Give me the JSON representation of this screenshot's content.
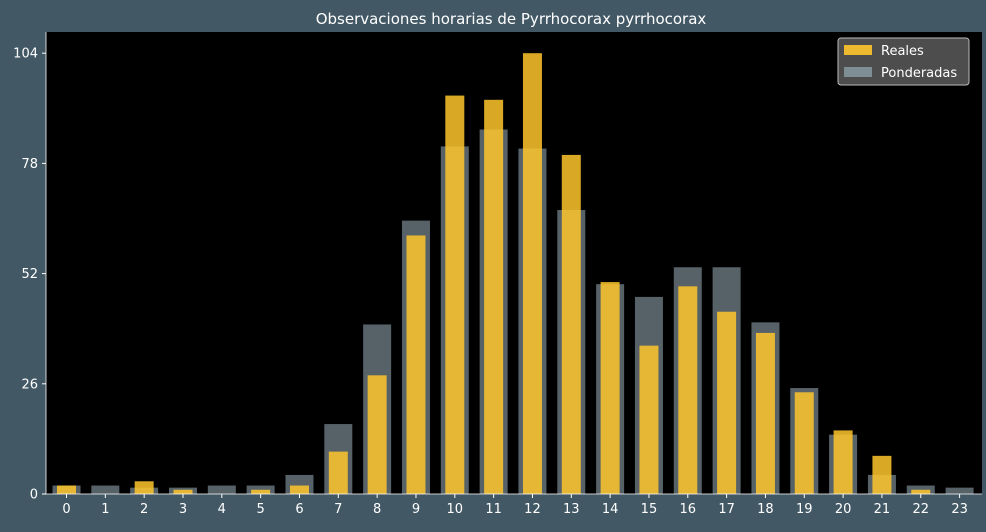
{
  "chart_data": {
    "type": "bar",
    "title": "Observaciones horarias de Pyrrhocorax pyrrhocorax",
    "xlabel": "",
    "ylabel": "",
    "categories": [
      "0",
      "1",
      "2",
      "3",
      "4",
      "5",
      "6",
      "7",
      "8",
      "9",
      "10",
      "11",
      "12",
      "13",
      "14",
      "15",
      "16",
      "17",
      "18",
      "19",
      "20",
      "21",
      "22",
      "23"
    ],
    "yticks": [
      0,
      26,
      52,
      78,
      104
    ],
    "ylim": [
      0,
      109
    ],
    "grid": false,
    "legend_position": "top-right",
    "series": [
      {
        "name": "Reales",
        "color": "#ffc72c",
        "values": [
          2,
          0,
          3,
          1,
          0,
          1,
          2,
          10,
          28,
          61,
          94,
          93,
          104,
          80,
          50,
          35,
          49,
          43,
          38,
          24,
          15,
          9,
          1,
          0
        ]
      },
      {
        "name": "Ponderadas",
        "color": "#90a4ae",
        "values": [
          2,
          2,
          1.5,
          1.5,
          2,
          2,
          4.5,
          16.5,
          40,
          64.5,
          82,
          86,
          81.5,
          67,
          49.5,
          46.5,
          53.5,
          53.5,
          40.5,
          25,
          14,
          4.5,
          2,
          1.5
        ]
      }
    ]
  },
  "colors": {
    "background": "#435865",
    "plot_background": "#000000",
    "text": "#ffffff",
    "legend_background": "#555555"
  }
}
